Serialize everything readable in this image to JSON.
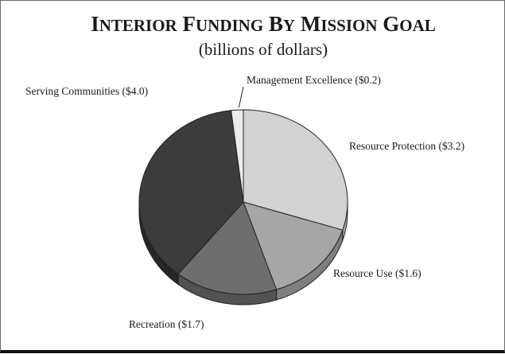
{
  "chart_data": {
    "type": "pie",
    "title": "INTERIOR FUNDING BY MISSION GOAL",
    "subtitle": "(billions of dollars)",
    "slices": [
      {
        "label": "Resource Protection ($3.2)",
        "value": 3.2,
        "color": "#d2d2d2",
        "side": "#a9a9a9"
      },
      {
        "label": "Resource Use ($1.6)",
        "value": 1.6,
        "color": "#a6a6a6",
        "side": "#7f7f7f"
      },
      {
        "label": "Recreation ($1.7)",
        "value": 1.7,
        "color": "#6e6e6e",
        "side": "#525252"
      },
      {
        "label": "Serving Communities ($4.0)",
        "value": 4.0,
        "color": "#3c3c3c",
        "side": "#262626"
      },
      {
        "label": "Management Excellence ($0.2)",
        "value": 0.2,
        "color": "#ececec",
        "side": "#c9c9c9"
      }
    ],
    "legend": "none"
  }
}
